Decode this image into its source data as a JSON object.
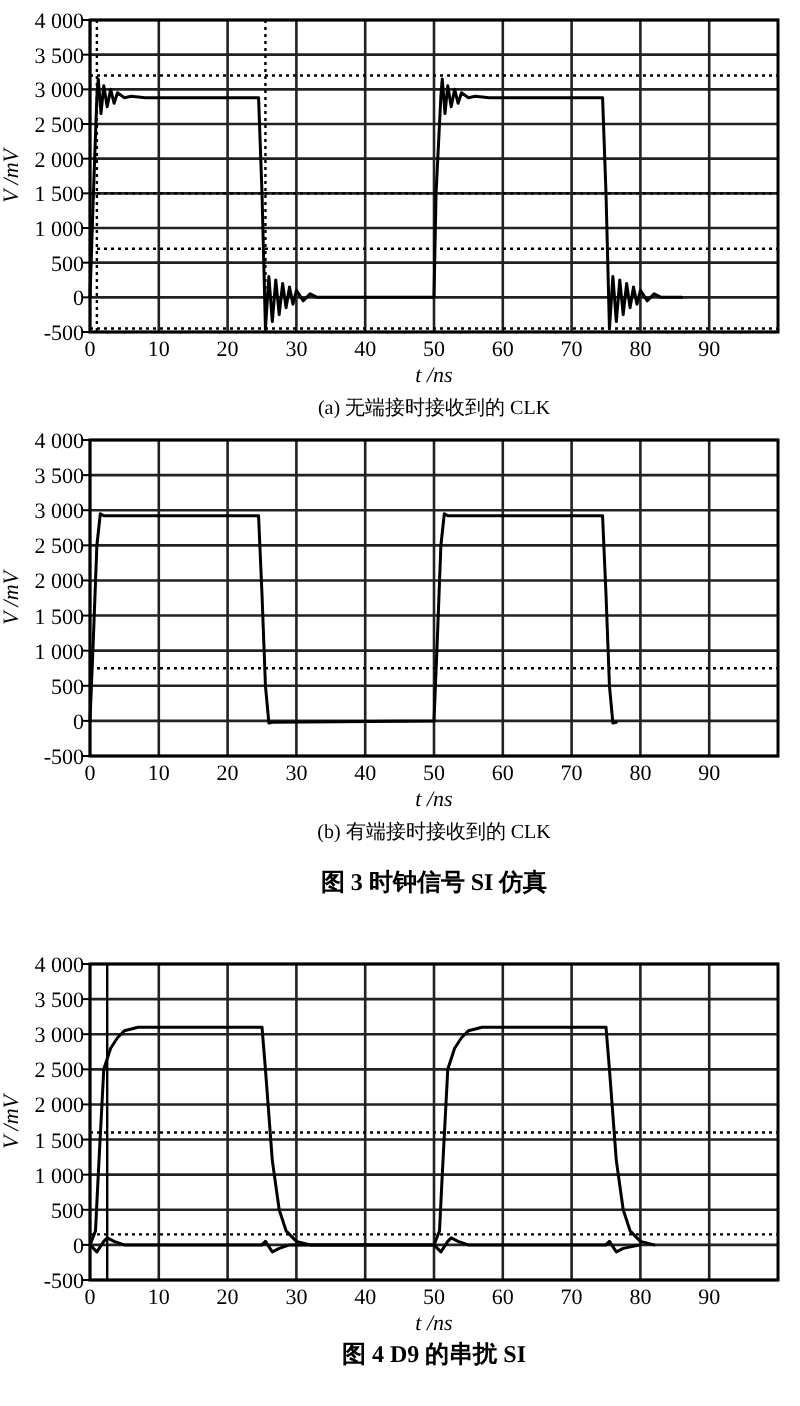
{
  "chart_data": [
    {
      "type": "line",
      "xlabel": "t /ns",
      "ylabel": "V /mV",
      "annotations": [
        "(a) 无端接时接收到的 CLK"
      ],
      "xlim": [
        0,
        100
      ],
      "xticks": [
        0,
        10,
        20,
        30,
        40,
        50,
        60,
        70,
        80,
        90
      ],
      "ylim": [
        -500,
        4000
      ],
      "yticks": [
        {
          "value": -500,
          "label": "-500"
        },
        {
          "value": 0,
          "label": "0"
        },
        {
          "value": 500,
          "label": "500"
        },
        {
          "value": 1000,
          "label": "1 000"
        },
        {
          "value": 1500,
          "label": "1 500"
        },
        {
          "value": 2000,
          "label": "2 000"
        },
        {
          "value": 2500,
          "label": "2 500"
        },
        {
          "value": 3000,
          "label": "3 000"
        },
        {
          "value": 3500,
          "label": "3 500"
        },
        {
          "value": 4000,
          "label": "4 000"
        }
      ],
      "grid": true,
      "marker": "none",
      "line_style": "solid",
      "ref_lines": [
        {
          "axis": "y",
          "value": 3200,
          "line_style": "dotted"
        },
        {
          "axis": "y",
          "value": 1500,
          "line_style": "dotted"
        },
        {
          "axis": "y",
          "value": 700,
          "line_style": "dotted"
        },
        {
          "axis": "y",
          "value": -450,
          "line_style": "dotted"
        },
        {
          "axis": "x",
          "value": 1,
          "line_style": "dotted"
        },
        {
          "axis": "x",
          "value": 25.5,
          "line_style": "dotted"
        }
      ],
      "series": [
        {
          "color": "#000000",
          "x": [
            0,
            0.5,
            1,
            1.2,
            1.6,
            2,
            2.5,
            3,
            3.5,
            4,
            5,
            6,
            8,
            24.5,
            25,
            25.5,
            26,
            26.5,
            27,
            27.5,
            28,
            28.5,
            29,
            29.5,
            30,
            31,
            32,
            33,
            35,
            50,
            50.3,
            51,
            51.2,
            51.6,
            52,
            52.5,
            53,
            53.5,
            54,
            55,
            56,
            58,
            74.5,
            75,
            75.5,
            76,
            76.5,
            77,
            77.5,
            78,
            78.5,
            79,
            79.5,
            80,
            81,
            82,
            83,
            86
          ],
          "values": [
            0,
            1500,
            2900,
            3150,
            2650,
            3050,
            2750,
            3000,
            2800,
            2950,
            2880,
            2900,
            2880,
            2880,
            1500,
            -450,
            300,
            -350,
            250,
            -250,
            200,
            -150,
            150,
            -100,
            100,
            -50,
            50,
            0,
            0,
            0,
            1500,
            2900,
            3150,
            2650,
            3050,
            2750,
            3000,
            2800,
            2950,
            2880,
            2900,
            2880,
            2880,
            1500,
            -450,
            300,
            -350,
            250,
            -250,
            200,
            -150,
            150,
            -100,
            100,
            -50,
            50,
            0,
            0
          ]
        }
      ]
    },
    {
      "type": "line",
      "xlabel": "t /ns",
      "ylabel": "V /mV",
      "annotations": [
        "(b) 有端接时接收到的 CLK",
        "图 3 时钟信号 SI 仿真"
      ],
      "xlim": [
        0,
        100
      ],
      "xticks": [
        0,
        10,
        20,
        30,
        40,
        50,
        60,
        70,
        80,
        90
      ],
      "ylim": [
        -500,
        4000
      ],
      "yticks": [
        {
          "value": -500,
          "label": "-500"
        },
        {
          "value": 0,
          "label": "0"
        },
        {
          "value": 500,
          "label": "500"
        },
        {
          "value": 1000,
          "label": "1 000"
        },
        {
          "value": 1500,
          "label": "1 500"
        },
        {
          "value": 2000,
          "label": "2 000"
        },
        {
          "value": 2500,
          "label": "2 500"
        },
        {
          "value": 3000,
          "label": "3 000"
        },
        {
          "value": 3500,
          "label": "3 500"
        },
        {
          "value": 4000,
          "label": "4 000"
        }
      ],
      "grid": true,
      "marker": "none",
      "line_style": "solid",
      "ref_lines": [
        {
          "axis": "y",
          "value": 750,
          "line_style": "dotted"
        }
      ],
      "series": [
        {
          "color": "#000000",
          "x": [
            0,
            0.5,
            1,
            1.5,
            2,
            24.5,
            25,
            25.5,
            26,
            26.5,
            50,
            50.5,
            51,
            51.5,
            52,
            74.5,
            75,
            75.5,
            76,
            76.5
          ],
          "values": [
            0,
            1200,
            2500,
            2950,
            2920,
            2920,
            1800,
            500,
            -30,
            -20,
            0,
            1200,
            2500,
            2950,
            2920,
            2920,
            1800,
            500,
            -30,
            -20
          ]
        }
      ]
    },
    {
      "type": "line",
      "xlabel": "t /ns",
      "ylabel": "V /mV",
      "annotations": [
        "图 4 D9 的串扰 SI"
      ],
      "xlim": [
        0,
        100
      ],
      "xticks": [
        0,
        10,
        20,
        30,
        40,
        50,
        60,
        70,
        80,
        90
      ],
      "ylim": [
        -500,
        4000
      ],
      "yticks": [
        {
          "value": -500,
          "label": "-500"
        },
        {
          "value": 0,
          "label": "0"
        },
        {
          "value": 500,
          "label": "500"
        },
        {
          "value": 1000,
          "label": "1 000"
        },
        {
          "value": 1500,
          "label": "1 500"
        },
        {
          "value": 2000,
          "label": "2 000"
        },
        {
          "value": 2500,
          "label": "2 500"
        },
        {
          "value": 3000,
          "label": "3 000"
        },
        {
          "value": 3500,
          "label": "3 500"
        },
        {
          "value": 4000,
          "label": "4 000"
        }
      ],
      "grid": true,
      "marker": "none",
      "line_style": "solid",
      "ref_lines": [
        {
          "axis": "y",
          "value": 1600,
          "line_style": "dotted"
        },
        {
          "axis": "y",
          "value": 150,
          "line_style": "dotted"
        },
        {
          "axis": "x",
          "value": 2.5,
          "line_style": "solid"
        }
      ],
      "series": [
        {
          "color": "#000000",
          "x": [
            0,
            0.8,
            1.2,
            2,
            3,
            4,
            5,
            7,
            25,
            25.5,
            26.5,
            27.5,
            28.5,
            30,
            32,
            50,
            50.8,
            51.2,
            52,
            53,
            54,
            55,
            57,
            75,
            75.5,
            76.5,
            77.5,
            78.5,
            80,
            82
          ],
          "values": [
            0,
            200,
            1000,
            2500,
            2800,
            2950,
            3050,
            3100,
            3100,
            2500,
            1200,
            500,
            200,
            50,
            0,
            0,
            200,
            1000,
            2500,
            2800,
            2950,
            3050,
            3100,
            3100,
            2500,
            1200,
            500,
            200,
            50,
            0
          ]
        },
        {
          "color": "#000000",
          "x": [
            0,
            1,
            2,
            2.5,
            3.5,
            5,
            25,
            25.5,
            26.5,
            27.5,
            29,
            50,
            51,
            52,
            52.5,
            53.5,
            55,
            75,
            75.5,
            76.5,
            77.5,
            80
          ],
          "values": [
            0,
            -100,
            50,
            100,
            50,
            0,
            0,
            50,
            -100,
            -50,
            0,
            0,
            -100,
            50,
            100,
            50,
            0,
            0,
            50,
            -100,
            -50,
            0
          ]
        }
      ]
    }
  ]
}
